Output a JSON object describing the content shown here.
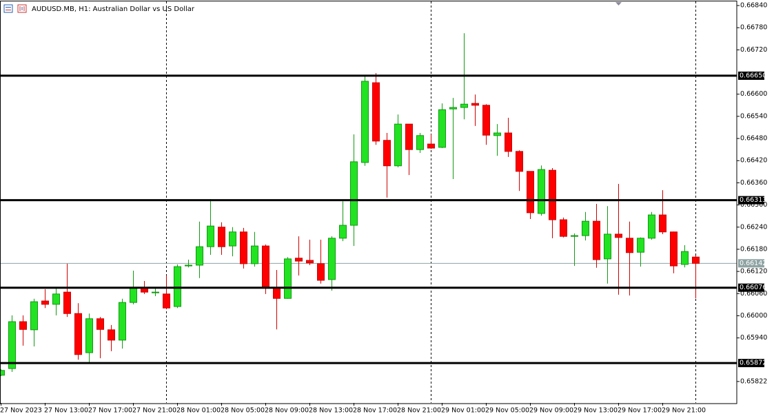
{
  "chart_data": {
    "type": "candlestick",
    "title": "AUDUSD.MB, H1:  Australian Dollar vs US Dollar",
    "categories": [
      "27 Nov 2023",
      null,
      null,
      null,
      "27 Nov 13:00",
      null,
      null,
      null,
      "27 Nov 17:00",
      null,
      null,
      null,
      "27 Nov 21:00",
      null,
      null,
      null,
      "28 Nov 01:00",
      null,
      null,
      null,
      "28 Nov 05:00",
      null,
      null,
      null,
      "28 Nov 09:00",
      null,
      null,
      null,
      "28 Nov 13:00",
      null,
      null,
      null,
      "28 Nov 17:00",
      null,
      null,
      null,
      "28 Nov 21:00",
      null,
      null,
      null,
      "29 Nov 01:00",
      null,
      null,
      null,
      "29 Nov 05:00",
      null,
      null,
      null,
      "29 Nov 09:00",
      null,
      null,
      null,
      "29 Nov 13:00",
      null,
      null,
      null,
      "29 Nov 17:00",
      null,
      null,
      null,
      "29 Nov 21:00",
      null,
      null,
      null
    ],
    "open": [
      0.65839,
      0.65857,
      0.65984,
      0.65962,
      0.6604,
      0.66031,
      0.66064,
      0.66006,
      0.659,
      0.65992,
      0.65962,
      0.65934,
      0.66036,
      0.66077,
      0.66064,
      0.66059,
      0.66025,
      0.66135,
      0.66137,
      0.66187,
      0.6624,
      0.66189,
      0.66227,
      0.66141,
      0.66189,
      0.66077,
      0.66047,
      0.66156,
      0.6615,
      0.66141,
      0.66098,
      0.6621,
      0.66245,
      0.66415,
      0.66631,
      0.66475,
      0.66406,
      0.66519,
      0.6645,
      0.66465,
      0.66456,
      0.6656,
      0.66564,
      0.66575,
      0.6657,
      0.66488,
      0.66495,
      0.66445,
      0.66391,
      0.66277,
      0.66394,
      0.6626,
      0.66215,
      0.66217,
      0.66256,
      0.66154,
      0.66221,
      0.6621,
      0.66172,
      0.6621,
      0.66273,
      0.66227,
      0.66139,
      0.66159
    ],
    "high": [
      0.65855,
      0.66001,
      0.66001,
      0.66046,
      0.66072,
      0.66075,
      0.66141,
      0.66034,
      0.66006,
      0.65997,
      0.65975,
      0.66046,
      0.66122,
      0.66094,
      0.66075,
      0.66109,
      0.66139,
      0.66152,
      0.66255,
      0.66316,
      0.66253,
      0.6624,
      0.66238,
      0.66227,
      0.66193,
      0.66124,
      0.66159,
      0.66215,
      0.66206,
      0.66206,
      0.66215,
      0.6631,
      0.66491,
      0.6665,
      0.66657,
      0.66495,
      0.66545,
      0.66519,
      0.66495,
      0.66491,
      0.66575,
      0.6659,
      0.66765,
      0.66599,
      0.66573,
      0.66519,
      0.66536,
      0.66448,
      0.66391,
      0.66407,
      0.664,
      0.66266,
      0.66223,
      0.66281,
      0.66303,
      0.66297,
      0.66357,
      0.66255,
      0.66212,
      0.66281,
      0.6634,
      0.66228,
      0.66191,
      0.66163
    ],
    "low": [
      0.65837,
      0.65848,
      0.65919,
      0.65917,
      0.66021,
      0.66001,
      0.65997,
      0.65881,
      0.6587,
      0.65885,
      0.65904,
      0.65911,
      0.66031,
      0.66059,
      0.66053,
      0.66018,
      0.66021,
      0.66131,
      0.66102,
      0.66165,
      0.66165,
      0.66161,
      0.66128,
      0.66133,
      0.66059,
      0.65963,
      0.66046,
      0.66109,
      0.66137,
      0.66087,
      0.66068,
      0.66202,
      0.66189,
      0.66406,
      0.66463,
      0.6632,
      0.66402,
      0.66381,
      0.66441,
      0.66452,
      0.66454,
      0.6637,
      0.66532,
      0.66514,
      0.66463,
      0.66433,
      0.6643,
      0.66338,
      0.66262,
      0.66271,
      0.6621,
      0.66212,
      0.66135,
      0.66204,
      0.6613,
      0.66087,
      0.66057,
      0.66055,
      0.66133,
      0.66206,
      0.66221,
      0.66115,
      0.66131,
      0.66047
    ],
    "close": [
      0.65852,
      0.65984,
      0.65963,
      0.66038,
      0.66031,
      0.66059,
      0.66006,
      0.65895,
      0.65992,
      0.65963,
      0.65934,
      0.66036,
      0.66077,
      0.66064,
      0.66064,
      0.66021,
      0.66133,
      0.66137,
      0.66187,
      0.66243,
      0.66187,
      0.66227,
      0.66141,
      0.66189,
      0.66077,
      0.66047,
      0.66154,
      0.66148,
      0.66143,
      0.66096,
      0.6621,
      0.66245,
      0.66417,
      0.66635,
      0.66473,
      0.66406,
      0.66519,
      0.6645,
      0.66488,
      0.66454,
      0.66558,
      0.66564,
      0.66573,
      0.6657,
      0.66489,
      0.66495,
      0.66445,
      0.66391,
      0.66279,
      0.66396,
      0.6626,
      0.66215,
      0.66217,
      0.66256,
      0.66152,
      0.66221,
      0.66212,
      0.66171,
      0.6621,
      0.66273,
      0.66227,
      0.66135,
      0.66174,
      0.66142
    ],
    "up_color": "#22e322",
    "down_color": "#ff0000",
    "ylim": [
      0.65764,
      0.66855
    ],
    "yticks": [
      {
        "value": 0.6684,
        "label": "0.66840"
      },
      {
        "value": 0.6678,
        "label": "0.66780"
      },
      {
        "value": 0.6672,
        "label": "0.66720"
      },
      {
        "value": 0.666,
        "label": "0.66600"
      },
      {
        "value": 0.6654,
        "label": "0.66540"
      },
      {
        "value": 0.6648,
        "label": "0.66480"
      },
      {
        "value": 0.6642,
        "label": "0.66420"
      },
      {
        "value": 0.6636,
        "label": "0.66360"
      },
      {
        "value": 0.663,
        "label": "0.66300"
      },
      {
        "value": 0.6624,
        "label": "0.66240"
      },
      {
        "value": 0.6618,
        "label": "0.66180"
      },
      {
        "value": 0.6612,
        "label": "0.66120"
      },
      {
        "value": 0.6606,
        "label": "0.66060"
      },
      {
        "value": 0.66,
        "label": "0.66000"
      },
      {
        "value": 0.6594,
        "label": "0.65940"
      },
      {
        "value": 0.65822,
        "label": "0.65822"
      }
    ],
    "levels": [
      {
        "value": 0.6665,
        "label": "0.66650"
      },
      {
        "value": 0.66313,
        "label": "0.66313"
      },
      {
        "value": 0.66076,
        "label": "0.66076"
      },
      {
        "value": 0.65872,
        "label": "0.65872"
      }
    ],
    "current_price": 0.66142,
    "grid": false
  }
}
